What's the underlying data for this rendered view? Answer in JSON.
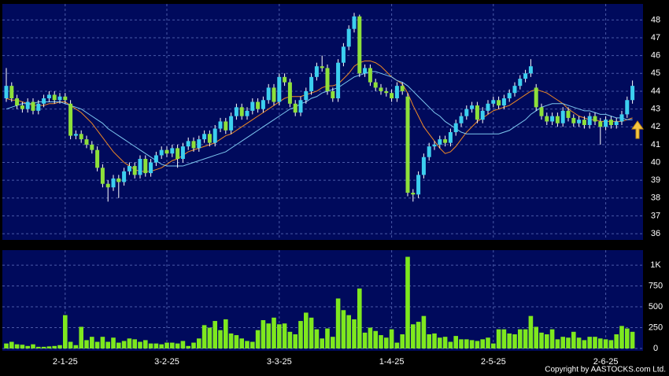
{
  "chart_data": {
    "type": "candlestick",
    "up_color": "#3ccfef",
    "down_color": "#8ee03a",
    "grid": true,
    "categories": [
      null,
      null,
      null,
      null,
      null,
      null,
      null,
      null,
      null,
      null,
      null,
      "2-1-25",
      null,
      null,
      null,
      null,
      null,
      null,
      null,
      null,
      null,
      null,
      null,
      null,
      null,
      null,
      null,
      null,
      null,
      null,
      "3-2-25",
      null,
      null,
      null,
      null,
      null,
      null,
      null,
      null,
      null,
      null,
      null,
      null,
      null,
      null,
      null,
      null,
      null,
      null,
      null,
      null,
      "3-3-25",
      null,
      null,
      null,
      null,
      null,
      null,
      null,
      null,
      null,
      null,
      null,
      null,
      null,
      null,
      null,
      null,
      null,
      null,
      null,
      null,
      "1-4-25",
      null,
      null,
      null,
      null,
      null,
      null,
      null,
      null,
      null,
      null,
      null,
      null,
      null,
      null,
      null,
      null,
      null,
      null,
      "2-5-25",
      null,
      null,
      null,
      null,
      null,
      null,
      null,
      null,
      null,
      null,
      null,
      null,
      null,
      null,
      null,
      null,
      null,
      null,
      null,
      null,
      "2-6-25",
      null,
      null,
      null,
      null,
      null
    ],
    "open": [
      43.6,
      44.3,
      43.6,
      43.2,
      43.0,
      43.4,
      42.9,
      43.3,
      43.6,
      43.8,
      43.5,
      43.7,
      43.3,
      41.5,
      41.6,
      41.3,
      41.0,
      40.7,
      39.7,
      38.8,
      38.6,
      39.1,
      38.9,
      39.5,
      39.8,
      39.3,
      40.2,
      39.4,
      40.0,
      40.4,
      40.7,
      40.5,
      40.8,
      40.2,
      40.9,
      41.2,
      40.8,
      41.3,
      41.6,
      41.1,
      41.9,
      42.3,
      41.8,
      42.6,
      43.1,
      42.6,
      42.9,
      43.4,
      43.0,
      43.5,
      44.2,
      43.4,
      44.8,
      44.5,
      43.3,
      42.8,
      43.5,
      44.0,
      44.8,
      45.4,
      45.3,
      44.0,
      43.6,
      45.6,
      46.5,
      47.5,
      48.2,
      45.0,
      45.3,
      44.5,
      44.2,
      44.0,
      43.9,
      43.6,
      44.3,
      43.7,
      38.3,
      38.2,
      39.3,
      40.3,
      40.9,
      41.0,
      41.3,
      41.1,
      41.7,
      42.2,
      42.6,
      43.0,
      43.2,
      42.4,
      42.9,
      43.3,
      43.5,
      43.2,
      43.6,
      43.9,
      44.3,
      44.7,
      45.0,
      44.2,
      43.1,
      42.6,
      42.3,
      42.6,
      42.2,
      42.9,
      42.5,
      42.2,
      42.4,
      42.1,
      42.6,
      42.3,
      42.0,
      42.4,
      42.1,
      42.3,
      42.7,
      43.5
    ],
    "high": [
      45.3,
      44.5,
      43.8,
      43.4,
      43.6,
      43.6,
      43.5,
      43.8,
      44.0,
      44.0,
      43.9,
      43.9,
      43.5,
      41.8,
      41.8,
      41.5,
      41.2,
      40.9,
      39.9,
      39.0,
      39.3,
      39.3,
      39.7,
      40.0,
      40.0,
      40.4,
      40.4,
      40.2,
      40.6,
      40.9,
      40.9,
      41.0,
      41.0,
      41.1,
      41.4,
      41.4,
      41.5,
      41.8,
      41.8,
      42.1,
      42.5,
      42.5,
      42.8,
      43.3,
      43.3,
      43.1,
      43.6,
      43.6,
      43.7,
      44.4,
      44.4,
      45.0,
      45.0,
      44.7,
      43.5,
      43.7,
      44.2,
      45.0,
      45.6,
      46.0,
      45.5,
      44.2,
      45.8,
      46.7,
      47.7,
      48.4,
      48.3,
      45.5,
      45.5,
      44.7,
      44.4,
      44.2,
      44.1,
      44.5,
      44.5,
      43.9,
      38.5,
      39.5,
      40.5,
      41.1,
      41.2,
      41.5,
      41.5,
      41.9,
      42.4,
      42.8,
      43.2,
      43.4,
      43.4,
      43.1,
      43.5,
      43.7,
      43.7,
      43.8,
      44.1,
      44.5,
      44.9,
      45.2,
      45.8,
      44.4,
      43.3,
      42.8,
      42.8,
      42.8,
      43.1,
      43.1,
      42.7,
      42.6,
      42.6,
      42.8,
      42.8,
      42.5,
      42.6,
      42.6,
      42.5,
      42.9,
      43.7,
      44.6
    ],
    "low": [
      43.4,
      43.4,
      43.0,
      42.8,
      42.8,
      42.7,
      42.7,
      43.1,
      43.4,
      43.3,
      43.3,
      43.3,
      41.3,
      41.3,
      41.1,
      40.8,
      40.5,
      39.5,
      38.6,
      37.8,
      38.4,
      38.0,
      38.7,
      39.3,
      39.1,
      39.1,
      39.2,
      39.2,
      39.8,
      40.2,
      40.3,
      40.3,
      39.7,
      40.0,
      40.7,
      40.6,
      40.6,
      41.1,
      40.9,
      40.9,
      41.7,
      41.6,
      41.6,
      42.4,
      42.4,
      42.4,
      42.7,
      42.8,
      42.8,
      43.3,
      43.2,
      43.2,
      44.3,
      43.1,
      42.6,
      42.6,
      43.3,
      43.8,
      44.6,
      45.1,
      43.8,
      43.4,
      43.4,
      45.4,
      46.3,
      47.3,
      44.8,
      44.8,
      44.3,
      44.0,
      43.8,
      43.7,
      43.4,
      43.4,
      43.8,
      38.1,
      37.8,
      38.0,
      39.1,
      40.1,
      40.7,
      40.8,
      40.9,
      40.9,
      41.5,
      42.0,
      42.4,
      42.8,
      42.2,
      42.2,
      42.7,
      43.1,
      43.0,
      43.0,
      43.4,
      43.7,
      44.1,
      44.5,
      44.8,
      42.9,
      42.4,
      42.1,
      42.1,
      42.0,
      42.0,
      42.3,
      42.0,
      42.0,
      41.9,
      41.9,
      42.1,
      41.0,
      41.8,
      41.9,
      41.9,
      42.1,
      42.5,
      43.3
    ],
    "close": [
      44.3,
      43.6,
      43.2,
      43.0,
      43.4,
      42.9,
      43.3,
      43.6,
      43.8,
      43.5,
      43.7,
      43.5,
      41.5,
      41.6,
      41.3,
      41.0,
      40.7,
      39.7,
      38.8,
      38.6,
      39.1,
      38.9,
      39.5,
      39.8,
      39.3,
      40.2,
      39.4,
      40.0,
      40.4,
      40.7,
      40.5,
      40.8,
      40.2,
      40.9,
      41.2,
      40.8,
      41.3,
      41.6,
      41.1,
      41.9,
      42.3,
      41.8,
      42.6,
      43.1,
      42.6,
      42.9,
      43.4,
      43.0,
      43.5,
      44.2,
      43.4,
      44.8,
      44.5,
      43.3,
      42.8,
      43.5,
      44.0,
      44.8,
      45.4,
      45.3,
      44.0,
      43.6,
      45.6,
      46.5,
      47.5,
      48.2,
      45.0,
      45.3,
      44.5,
      44.2,
      44.0,
      43.9,
      43.6,
      44.3,
      44.0,
      38.3,
      38.2,
      39.3,
      40.3,
      40.9,
      41.0,
      41.3,
      41.1,
      41.7,
      42.2,
      42.6,
      43.0,
      43.2,
      42.4,
      42.9,
      43.3,
      43.5,
      43.2,
      43.6,
      43.9,
      44.3,
      44.7,
      45.0,
      45.4,
      43.1,
      42.6,
      42.3,
      42.6,
      42.2,
      42.9,
      42.5,
      42.2,
      42.4,
      42.1,
      42.6,
      42.3,
      42.0,
      42.4,
      42.1,
      42.3,
      42.7,
      43.5,
      44.3
    ],
    "moving_averages": [
      {
        "color": "#f08a24",
        "values": [
          43.6,
          43.5,
          43.5,
          43.4,
          43.3,
          43.2,
          43.2,
          43.2,
          43.3,
          43.3,
          43.4,
          43.4,
          43.2,
          43.0,
          42.8,
          42.5,
          42.2,
          41.8,
          41.4,
          41.0,
          40.6,
          40.3,
          40.0,
          39.8,
          39.6,
          39.5,
          39.5,
          39.5,
          39.6,
          39.7,
          39.9,
          40.1,
          40.2,
          40.4,
          40.6,
          40.7,
          40.8,
          40.9,
          41.0,
          41.1,
          41.3,
          41.5,
          41.6,
          41.8,
          42.0,
          42.2,
          42.4,
          42.6,
          42.8,
          43.0,
          43.2,
          43.4,
          43.6,
          43.7,
          43.7,
          43.7,
          43.8,
          43.9,
          44.0,
          44.2,
          44.3,
          44.3,
          44.4,
          44.7,
          45.0,
          45.4,
          45.6,
          45.7,
          45.7,
          45.6,
          45.4,
          45.1,
          44.8,
          44.6,
          44.4,
          43.9,
          43.2,
          42.6,
          42.0,
          41.6,
          41.2,
          40.8,
          40.5,
          40.6,
          40.9,
          41.3,
          41.7,
          42.0,
          42.3,
          42.5,
          42.7,
          42.9,
          43.0,
          43.1,
          43.2,
          43.4,
          43.6,
          43.8,
          44.0,
          44.1,
          44.0,
          43.9,
          43.7,
          43.5,
          43.3,
          43.0,
          42.8,
          42.6,
          42.5,
          42.4,
          42.4,
          42.3,
          42.3,
          42.3,
          42.3,
          42.3,
          42.4,
          42.5
        ]
      },
      {
        "color": "#7ec8f0",
        "values": [
          43.0,
          43.1,
          43.2,
          43.3,
          43.3,
          43.3,
          43.4,
          43.4,
          43.4,
          43.4,
          43.4,
          43.3,
          43.2,
          43.1,
          43.0,
          42.8,
          42.6,
          42.4,
          42.2,
          41.9,
          41.7,
          41.5,
          41.3,
          41.1,
          40.9,
          40.7,
          40.5,
          40.3,
          40.1,
          39.9,
          39.8,
          39.8,
          39.8,
          39.8,
          39.9,
          40.0,
          40.1,
          40.2,
          40.3,
          40.4,
          40.5,
          40.6,
          40.8,
          41.0,
          41.2,
          41.4,
          41.6,
          41.8,
          42.0,
          42.2,
          42.4,
          42.6,
          42.8,
          43.0,
          43.1,
          43.3,
          43.4,
          43.6,
          43.7,
          43.9,
          44.0,
          44.1,
          44.2,
          44.4,
          44.6,
          44.8,
          44.9,
          45.0,
          45.1,
          45.1,
          45.0,
          44.9,
          44.8,
          44.6,
          44.5,
          44.3,
          44.0,
          43.7,
          43.4,
          43.1,
          42.8,
          42.6,
          42.3,
          42.1,
          41.9,
          41.7,
          41.6,
          41.6,
          41.6,
          41.6,
          41.6,
          41.6,
          41.6,
          41.7,
          41.8,
          42.0,
          42.2,
          42.4,
          42.7,
          42.9,
          43.1,
          43.2,
          43.3,
          43.3,
          43.3,
          43.2,
          43.1,
          43.0,
          42.9,
          42.9,
          42.8,
          42.7,
          42.7,
          42.6,
          42.5,
          42.5,
          42.4,
          42.4
        ]
      }
    ],
    "ylim": [
      35.65,
      48.9
    ],
    "yticks": [
      36,
      37,
      38,
      39,
      40,
      41,
      42,
      43,
      44,
      45,
      46,
      47,
      48
    ],
    "volume": {
      "color": "#7ee81e",
      "values": [
        60,
        80,
        50,
        45,
        30,
        50,
        20,
        20,
        25,
        30,
        40,
        400,
        80,
        40,
        260,
        100,
        140,
        80,
        140,
        80,
        130,
        70,
        90,
        120,
        110,
        80,
        100,
        60,
        60,
        50,
        70,
        70,
        60,
        90,
        30,
        70,
        120,
        280,
        250,
        330,
        220,
        350,
        180,
        160,
        120,
        90,
        80,
        220,
        340,
        300,
        370,
        290,
        300,
        200,
        170,
        330,
        430,
        370,
        230,
        120,
        240,
        140,
        600,
        460,
        400,
        350,
        720,
        190,
        250,
        210,
        160,
        130,
        230,
        70,
        170,
        1100,
        290,
        320,
        390,
        170,
        180,
        130,
        140,
        80,
        150,
        110,
        110,
        100,
        90,
        110,
        130,
        60,
        230,
        230,
        180,
        170,
        230,
        230,
        390,
        260,
        190,
        170,
        230,
        110,
        140,
        130,
        200,
        130,
        100,
        140,
        140,
        120,
        110,
        100,
        170,
        270,
        240,
        200
      ],
      "ylim": [
        0,
        1180
      ],
      "yticks": [
        0,
        250,
        500,
        750,
        {
          "value": 1000,
          "label": "1K"
        }
      ]
    },
    "copyright": "Copyright by AASTOCKS.com Ltd."
  }
}
